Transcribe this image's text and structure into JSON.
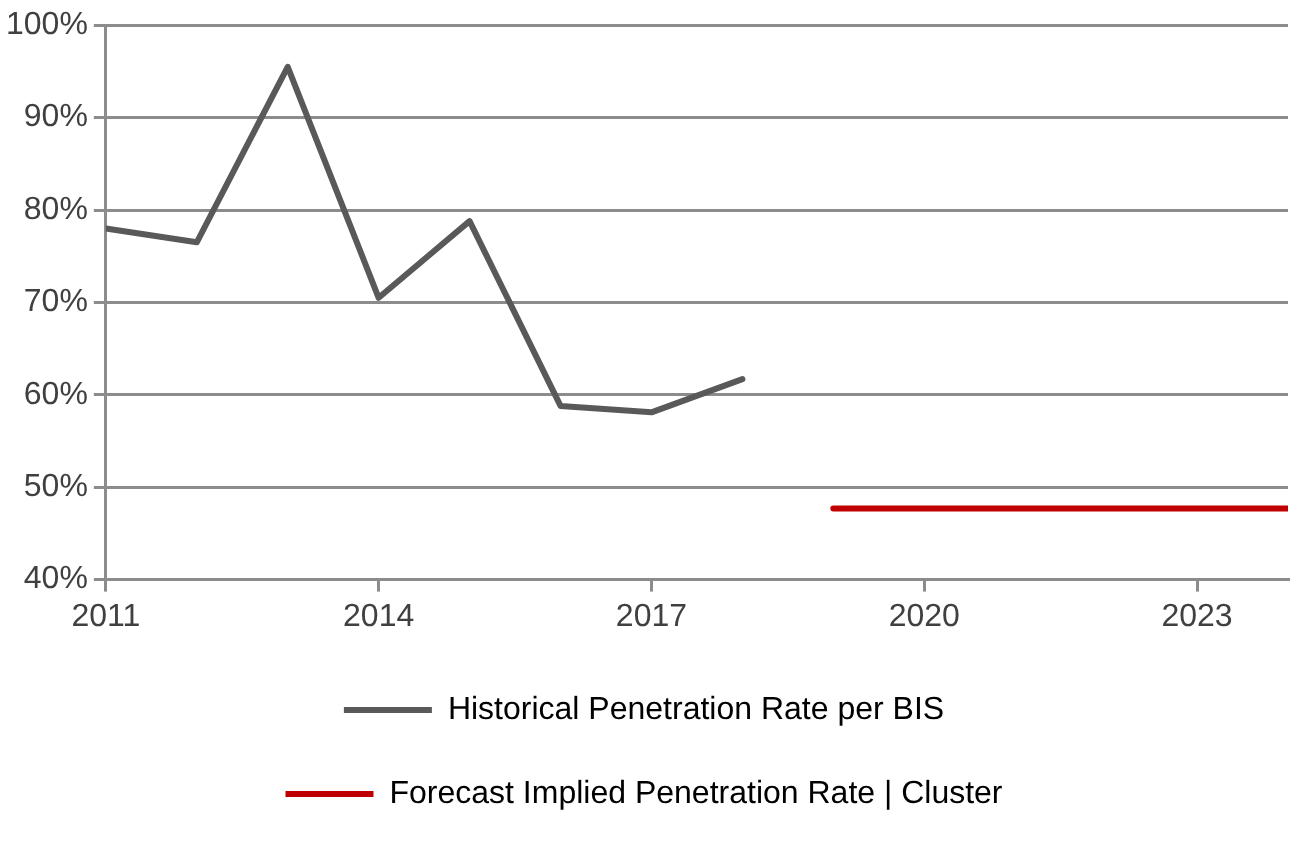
{
  "chart_data": {
    "type": "line",
    "x": [
      2011,
      2012,
      2013,
      2014,
      2015,
      2016,
      2017,
      2018
    ],
    "series": [
      {
        "name": "Historical Penetration Rate per BIS",
        "color": "#595959",
        "values": [
          78,
          76.5,
          95.5,
          70.5,
          78.8,
          58.8,
          58.1,
          61.7
        ]
      },
      {
        "name": "Forecast Implied Penetration Rate | Cluster",
        "color": "#c00000",
        "x": [
          2019,
          2024
        ],
        "values": [
          47.7,
          47.7
        ]
      }
    ],
    "xlim": [
      2011,
      2024
    ],
    "xticks": [
      2011,
      2014,
      2017,
      2020,
      2023
    ],
    "ylim": [
      40,
      100
    ],
    "yticks": [
      {
        "value": 40,
        "label": "40%"
      },
      {
        "value": 50,
        "label": "50%"
      },
      {
        "value": 60,
        "label": "60%"
      },
      {
        "value": 70,
        "label": "70%"
      },
      {
        "value": 80,
        "label": "80%"
      },
      {
        "value": 90,
        "label": "90%"
      },
      {
        "value": 100,
        "label": "100%"
      }
    ],
    "grid": "y",
    "legend": "bottom",
    "marker": "none",
    "line_style": "solid"
  }
}
